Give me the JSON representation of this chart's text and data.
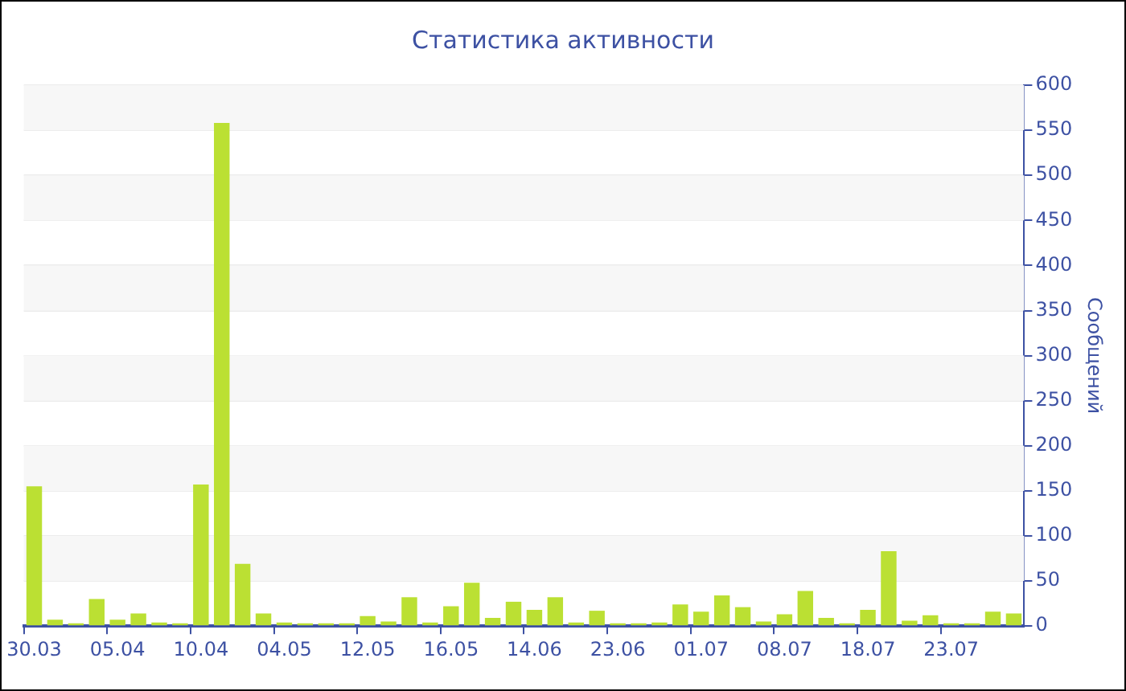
{
  "chart_data": {
    "type": "bar",
    "title": "Статистика активности",
    "ylabel": "Сообщений",
    "categories": [
      "30.03",
      null,
      null,
      null,
      "05.04",
      null,
      null,
      null,
      "10.04",
      null,
      null,
      null,
      "04.05",
      null,
      null,
      null,
      "12.05",
      null,
      null,
      null,
      "16.05",
      null,
      null,
      null,
      "14.06",
      null,
      null,
      null,
      "23.06",
      null,
      null,
      null,
      "01.07",
      null,
      null,
      null,
      "08.07",
      null,
      null,
      null,
      "18.07",
      null,
      null,
      null,
      "23.07",
      null,
      null,
      null
    ],
    "values": [
      155,
      7,
      3,
      30,
      7,
      14,
      4,
      3,
      157,
      558,
      69,
      14,
      4,
      3,
      3,
      3,
      11,
      5,
      32,
      4,
      22,
      48,
      9,
      27,
      18,
      32,
      4,
      17,
      3,
      3,
      4,
      24,
      16,
      34,
      21,
      5,
      13,
      39,
      9,
      3,
      18,
      83,
      6,
      12,
      3,
      3,
      16,
      14
    ],
    "color": "#bbe033",
    "ylim": [
      0,
      600
    ],
    "yticks": [
      0,
      50,
      100,
      150,
      200,
      250,
      300,
      350,
      400,
      450,
      500,
      550,
      600
    ],
    "grid": "y"
  }
}
